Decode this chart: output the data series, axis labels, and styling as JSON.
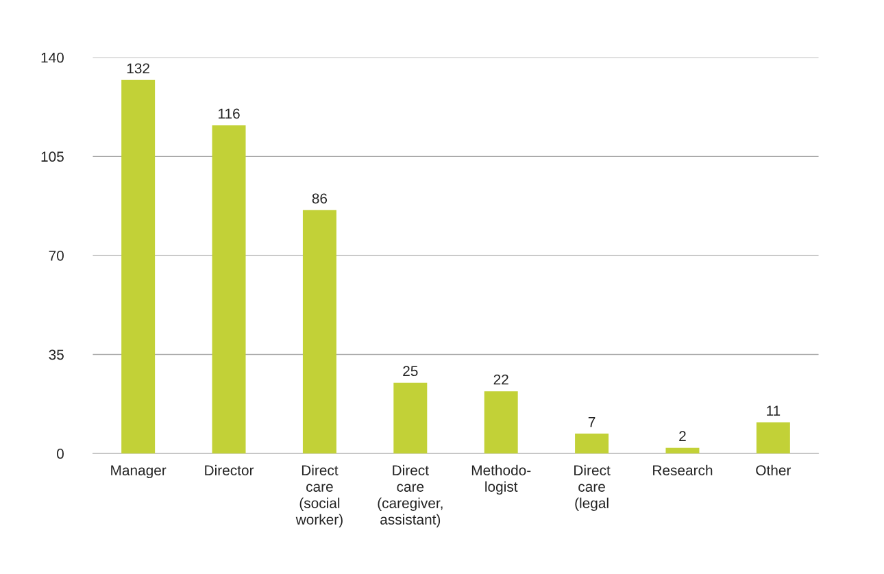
{
  "chart_data": {
    "type": "bar",
    "categories": [
      "Manager",
      "Director",
      "Direct\ncare\n(social\nworker)",
      "Direct\ncare\n(caregiver,\nassistant)",
      "Methodo-\nlogist",
      "Direct\ncare\n(legal",
      "Research",
      "Other"
    ],
    "values": [
      132,
      116,
      86,
      25,
      22,
      7,
      2,
      11
    ],
    "color": "#c2d137",
    "ylim": [
      0,
      140
    ],
    "yticks": [
      0,
      35,
      70,
      105,
      140
    ],
    "grid": "y",
    "data_labels": true
  }
}
